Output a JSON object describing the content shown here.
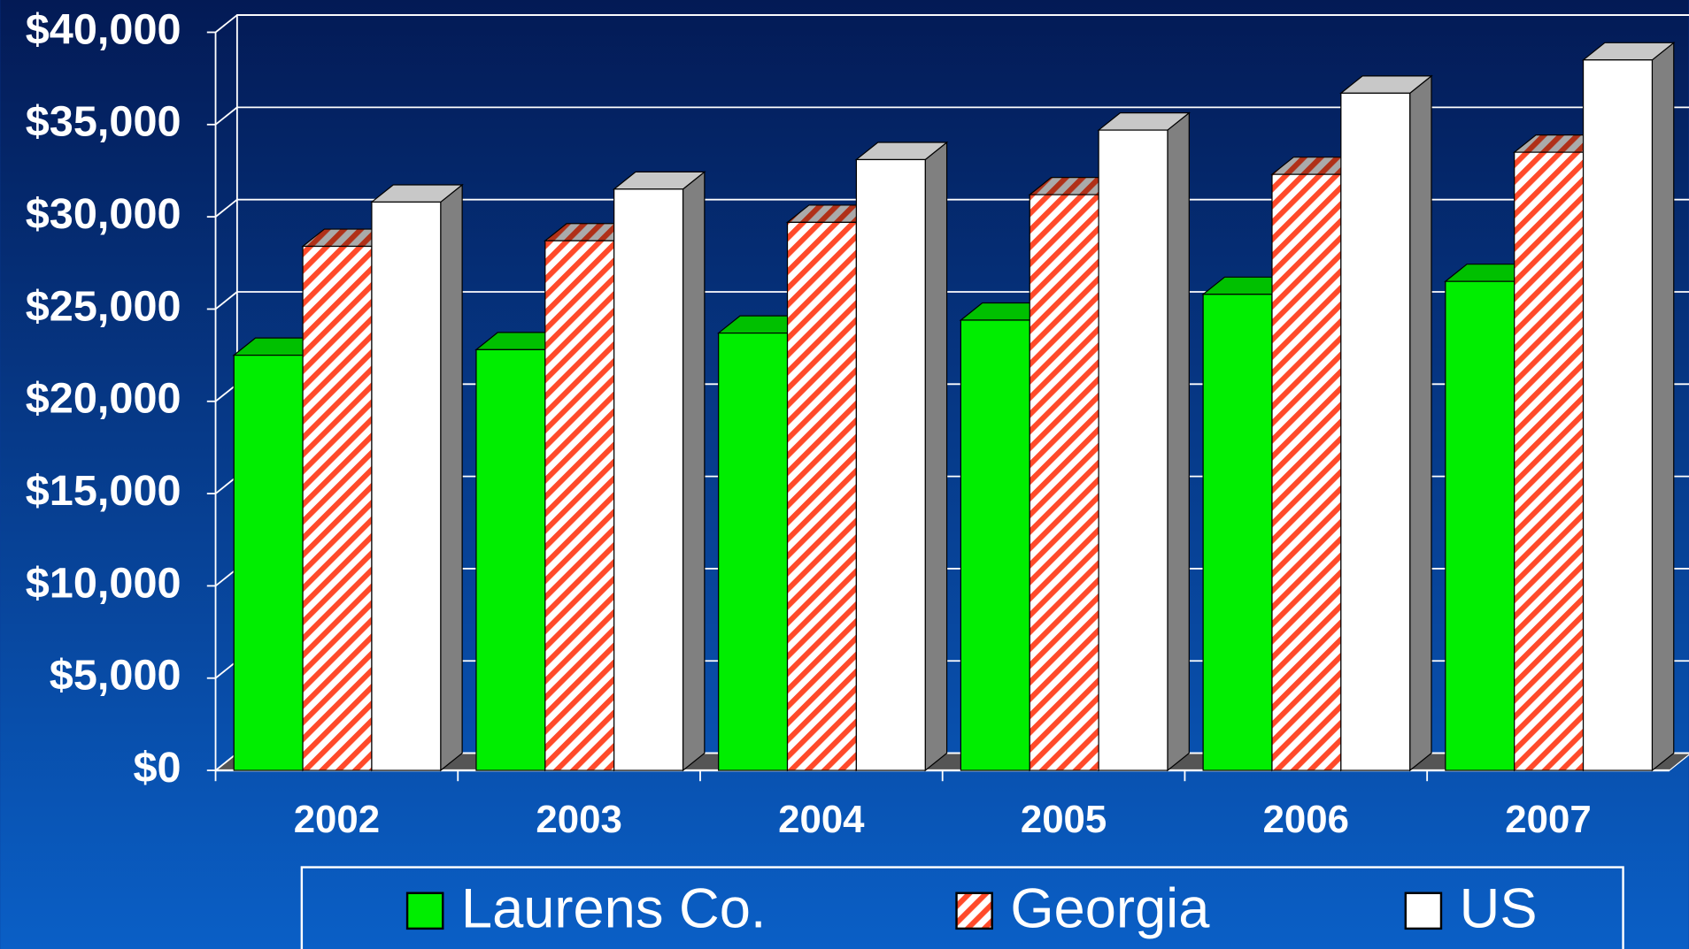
{
  "chart_data": {
    "type": "bar3d",
    "categories": [
      "2002",
      "2003",
      "2004",
      "2005",
      "2006",
      "2007"
    ],
    "series": [
      {
        "name": "Laurens Co.",
        "color": "#00ee00",
        "values": [
          22500,
          22800,
          23700,
          24400,
          25800,
          26500
        ]
      },
      {
        "name": "Georgia",
        "color": "#ff4a2a",
        "values": [
          28400,
          28700,
          29700,
          31200,
          32300,
          33500
        ]
      },
      {
        "name": "US",
        "color": "#ffffff",
        "values": [
          30800,
          31500,
          33100,
          34700,
          36700,
          38500
        ]
      }
    ],
    "ylim": [
      0,
      40000
    ],
    "yticks": [
      {
        "value": 0,
        "label": "$0"
      },
      {
        "value": 5000,
        "label": "$5,000"
      },
      {
        "value": 10000,
        "label": "$10,000"
      },
      {
        "value": 15000,
        "label": "$15,000"
      },
      {
        "value": 20000,
        "label": "$20,000"
      },
      {
        "value": 25000,
        "label": "$25,000"
      },
      {
        "value": 30000,
        "label": "$30,000"
      },
      {
        "value": 35000,
        "label": "$35,000"
      },
      {
        "value": 40000,
        "label": "$40,000"
      }
    ],
    "grid": true,
    "legend": "bottom"
  }
}
